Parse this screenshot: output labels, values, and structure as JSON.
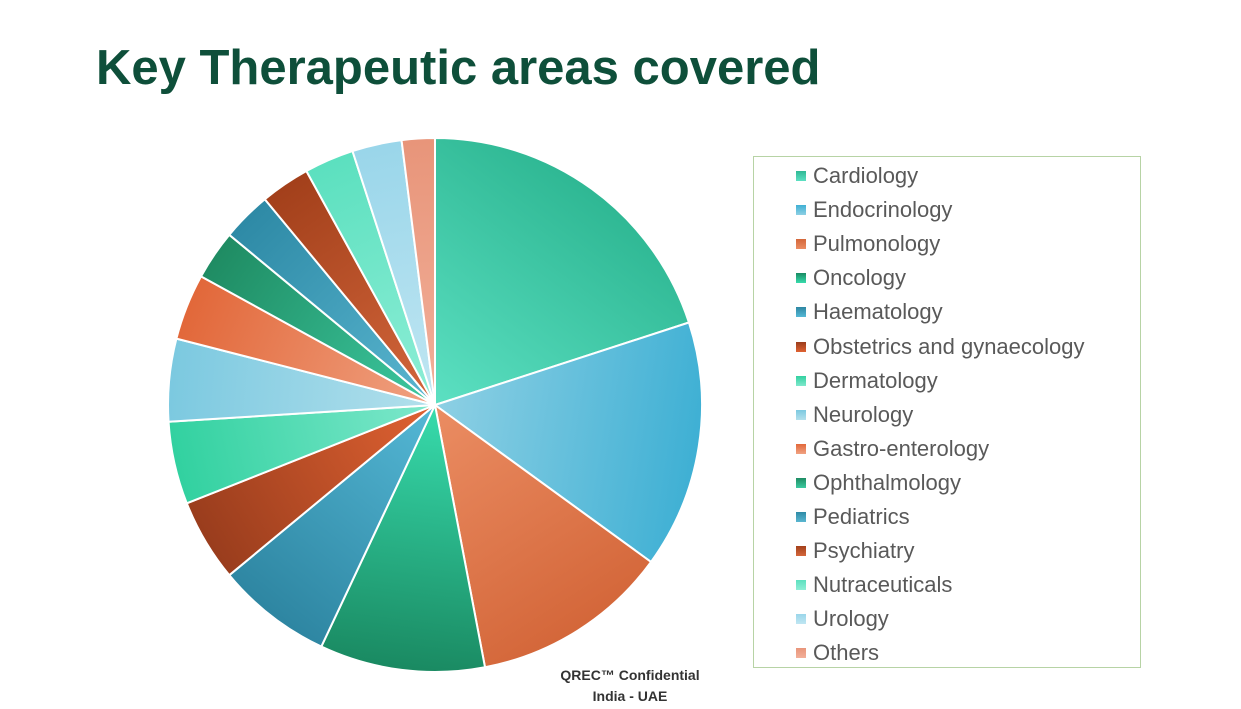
{
  "slide": {
    "title": "Key Therapeutic areas covered",
    "footer_line1": "QREC™ Confidential",
    "footer_line2": "India - UAE"
  },
  "chart_data": {
    "type": "pie",
    "title": "",
    "start_angle_deg": 0,
    "direction": "clockwise",
    "legend_position": "right",
    "slices": [
      {
        "label": "Cardiology",
        "value": 20,
        "color": "#2fb894",
        "color_light": "#5ce0c2"
      },
      {
        "label": "Endocrinology",
        "value": 15,
        "color": "#3fb0d4",
        "color_light": "#8ed0e4"
      },
      {
        "label": "Pulmonology",
        "value": 12,
        "color": "#d4673a",
        "color_light": "#eb8d63"
      },
      {
        "label": "Oncology",
        "value": 10,
        "color": "#1a8a62",
        "color_light": "#38dcad"
      },
      {
        "label": "Haematology",
        "value": 7,
        "color": "#2e86a2",
        "color_light": "#55b8d6"
      },
      {
        "label": "Obstetrics and gynaecology",
        "value": 5,
        "color": "#9a3d1d",
        "color_light": "#e06232"
      },
      {
        "label": "Dermatology",
        "value": 5,
        "color": "#32d1a0",
        "color_light": "#7fe8cc"
      },
      {
        "label": "Neurology",
        "value": 5,
        "color": "#7cc9e0",
        "color_light": "#b3e0ec"
      },
      {
        "label": "Gastro-enterology",
        "value": 4,
        "color": "#e2683a",
        "color_light": "#f0a282"
      },
      {
        "label": "Ophthalmology",
        "value": 3,
        "color": "#1f8c63",
        "color_light": "#3dc9a0"
      },
      {
        "label": "Pediatrics",
        "value": 3,
        "color": "#2e8aa6",
        "color_light": "#5ab6d0"
      },
      {
        "label": "Psychiatry",
        "value": 3,
        "color": "#a3401b",
        "color_light": "#d4673c"
      },
      {
        "label": "Nutraceuticals",
        "value": 3,
        "color": "#5ce0bf",
        "color_light": "#8eeed6"
      },
      {
        "label": "Urology",
        "value": 3,
        "color": "#9ad6ea",
        "color_light": "#c0e6f2"
      },
      {
        "label": "Others",
        "value": 2,
        "color": "#e8957a",
        "color_light": "#f2b09a"
      }
    ]
  }
}
